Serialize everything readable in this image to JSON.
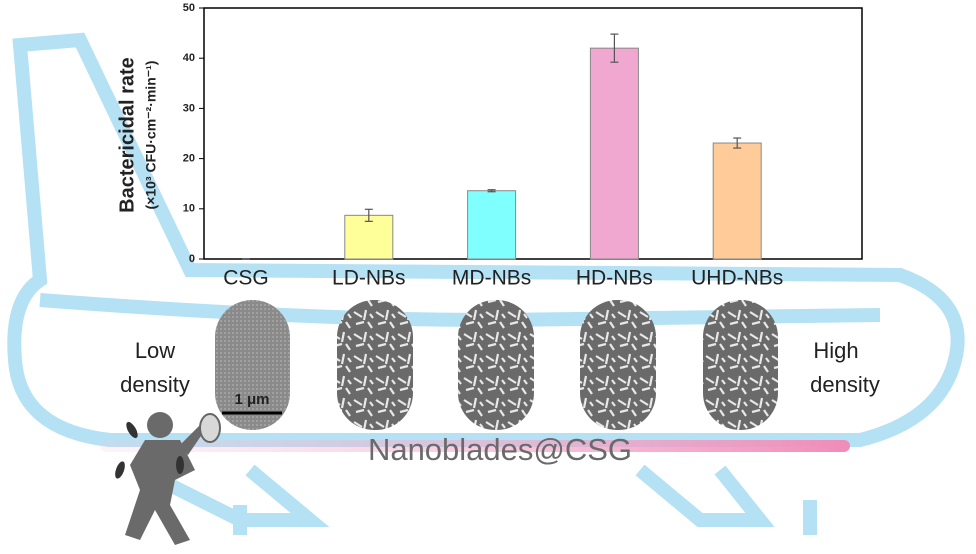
{
  "chart_data": {
    "type": "bar",
    "y_label": [
      "Bactericidal rate",
      "(×10³ CFU·cm⁻²·min⁻¹)"
    ],
    "categories": [
      "CSG",
      "LD-NBs",
      "MD-NBs",
      "HD-NBs",
      "UHD-NBs"
    ],
    "values": [
      0,
      8.7,
      13.6,
      42,
      23.1
    ],
    "errors": [
      0,
      1.2,
      0.2,
      2.8,
      1.0
    ],
    "colors": [
      "#c8c8c8",
      "#ffff99",
      "#80ffff",
      "#f0a8d0",
      "#ffcc99"
    ],
    "ylim": [
      0,
      50
    ],
    "yticks": [
      0,
      10,
      20,
      30,
      40,
      50
    ],
    "annotations": {
      "low": [
        "Low",
        "density"
      ],
      "high": [
        "High",
        "density"
      ],
      "scale": "1 μm",
      "caption": "Nanoblades@CSG"
    }
  }
}
